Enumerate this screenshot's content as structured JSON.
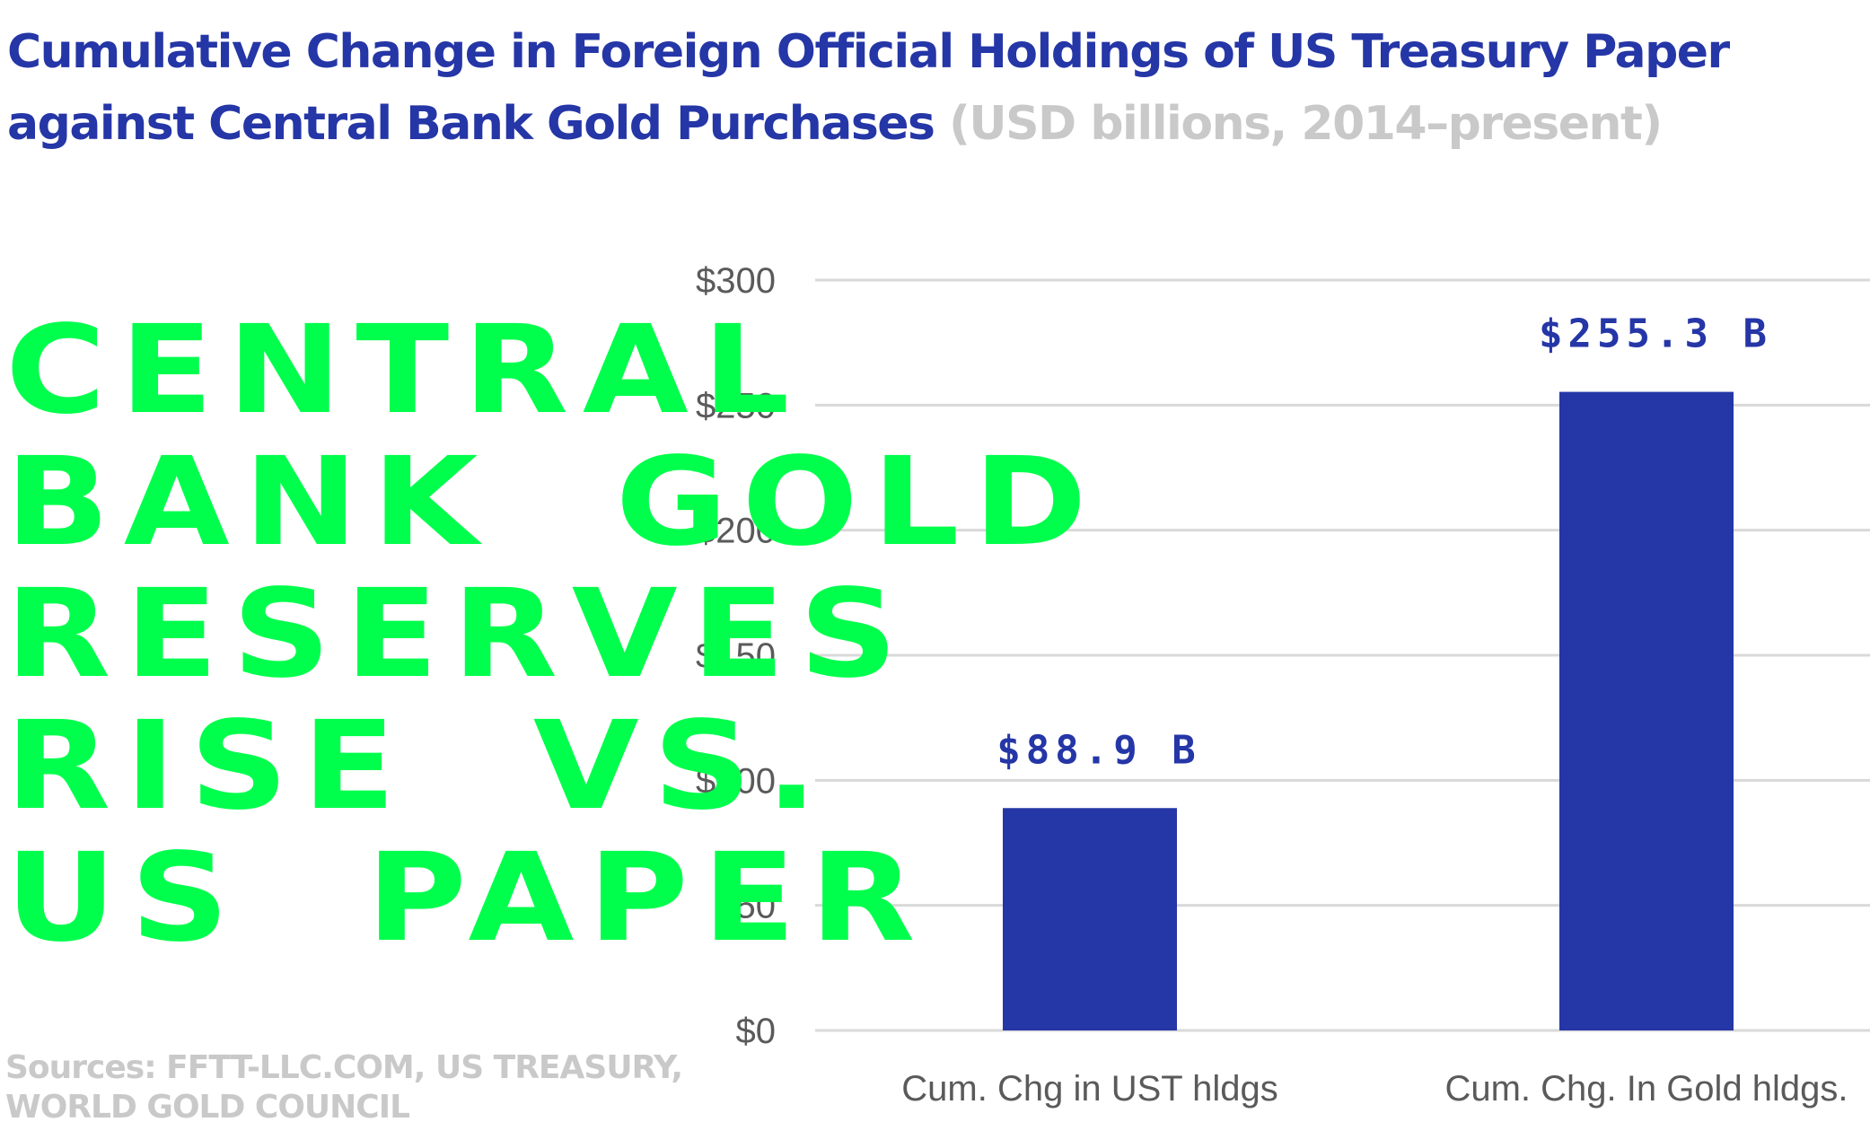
{
  "header": {
    "title": "Cumulative Change in Foreign Official Holdings of US Treasury Paper against Central Bank Gold Purchases",
    "subtitle": "(USD billions, 2014–present)"
  },
  "overlay_text": [
    "CENTRAL",
    "BANK  GOLD",
    "RESERVES",
    "RISE  VS.",
    "US  PAPER"
  ],
  "sources": [
    "Sources: FFTT-LLC.COM, US TREASURY,",
    "WORLD GOLD COUNCIL"
  ],
  "colors": {
    "bar": "#2536a7",
    "title": "#2536a7",
    "subtitle": "#c9c9c9",
    "overlay": "#00ff4c",
    "grid": "#d9d9d9"
  },
  "chart_data": {
    "type": "bar",
    "categories": [
      "Cum. Chg in UST hldgs",
      "Cum. Chg. In Gold hldgs."
    ],
    "values": [
      88.9,
      255.3
    ],
    "data_labels": [
      "$88.9 B",
      "$255.3 B"
    ],
    "yticks": [
      "$0",
      "$50",
      "$100",
      "$150",
      "$200",
      "$250",
      "$300"
    ],
    "ylim": [
      0,
      300
    ],
    "grid": true,
    "legend": "none"
  }
}
